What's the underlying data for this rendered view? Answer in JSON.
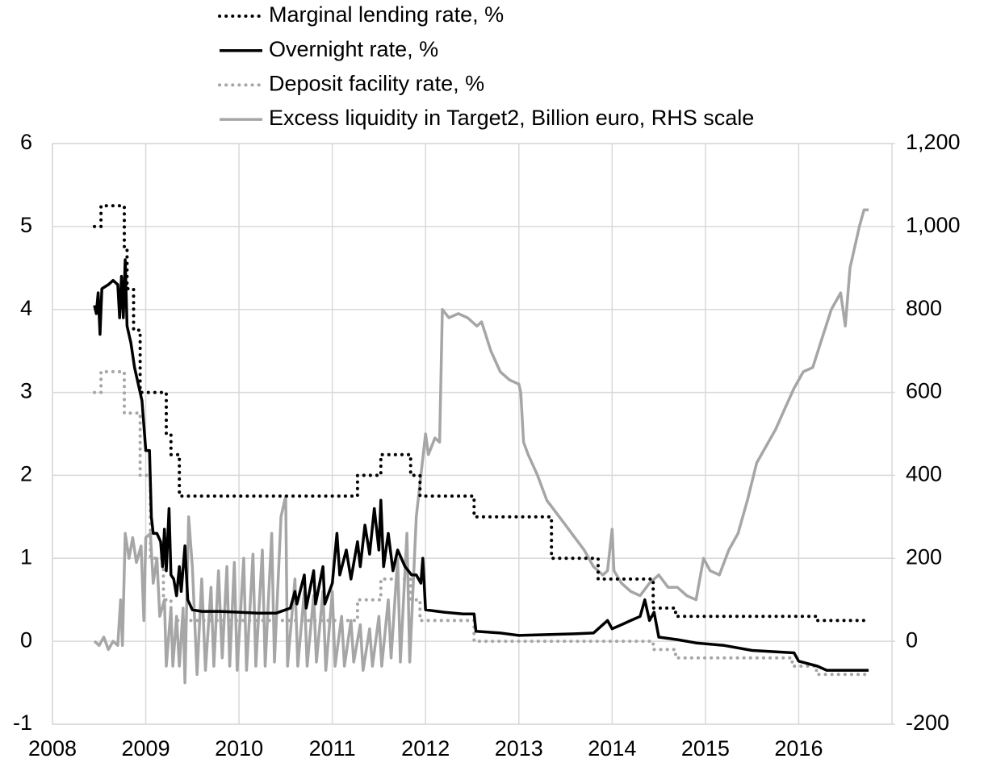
{
  "chart_data": {
    "type": "line",
    "xlim": [
      2008,
      2017
    ],
    "xticks": [
      2008,
      2009,
      2010,
      2011,
      2012,
      2013,
      2014,
      2015,
      2016
    ],
    "ylim": [
      -1,
      6
    ],
    "yticks": [
      -1,
      0,
      1,
      2,
      3,
      4,
      5,
      6
    ],
    "y2lim": [
      -200,
      1200
    ],
    "y2ticks": [
      -200,
      0,
      200,
      400,
      600,
      800,
      {
        "value": 1000,
        "label": "1,000"
      },
      {
        "value": 1200,
        "label": "1,200"
      }
    ],
    "grid": true,
    "series": [
      {
        "name": "Marginal lending rate, %",
        "color": "#000000",
        "dash": "dotted",
        "x": [
          2008.45,
          2008.52,
          2008.52,
          2008.77,
          2008.77,
          2008.8,
          2008.8,
          2008.87,
          2008.87,
          2008.94,
          2008.94,
          2009.22,
          2009.22,
          2009.27,
          2009.27,
          2009.36,
          2009.36,
          2011.27,
          2011.27,
          2011.52,
          2011.52,
          2011.84,
          2011.84,
          2011.94,
          2011.94,
          2012.52,
          2012.52,
          2013.35,
          2013.35,
          2013.85,
          2013.85,
          2014.44,
          2014.44,
          2014.68,
          2014.68,
          2016.19,
          2016.19,
          2016.75
        ],
        "values": [
          5,
          5,
          5.25,
          5.25,
          4.75,
          4.75,
          4.25,
          4.25,
          3.75,
          3.75,
          3,
          3,
          2.5,
          2.5,
          2.25,
          2.25,
          1.75,
          1.75,
          2,
          2,
          2.25,
          2.25,
          2,
          2,
          1.75,
          1.75,
          1.5,
          1.5,
          1,
          1,
          0.75,
          0.75,
          0.4,
          0.4,
          0.3,
          0.3,
          0.25,
          0.25
        ]
      },
      {
        "name": "Overnight rate, %",
        "color": "#000000",
        "dash": "solid",
        "x": [
          2008.45,
          2008.47,
          2008.49,
          2008.51,
          2008.53,
          2008.6,
          2008.65,
          2008.7,
          2008.72,
          2008.74,
          2008.76,
          2008.78,
          2008.8,
          2008.84,
          2008.88,
          2008.92,
          2008.96,
          2009.0,
          2009.04,
          2009.06,
          2009.08,
          2009.12,
          2009.16,
          2009.18,
          2009.2,
          2009.22,
          2009.25,
          2009.27,
          2009.3,
          2009.33,
          2009.36,
          2009.38,
          2009.42,
          2009.45,
          2009.5,
          2009.6,
          2009.8,
          2010.0,
          2010.2,
          2010.4,
          2010.55,
          2010.6,
          2010.62,
          2010.7,
          2010.72,
          2010.8,
          2010.82,
          2010.9,
          2010.92,
          2011.0,
          2011.05,
          2011.08,
          2011.15,
          2011.2,
          2011.27,
          2011.3,
          2011.35,
          2011.4,
          2011.45,
          2011.5,
          2011.52,
          2011.55,
          2011.6,
          2011.65,
          2011.7,
          2011.78,
          2011.85,
          2011.9,
          2011.95,
          2011.97,
          2012.0,
          2012.2,
          2012.4,
          2012.52,
          2012.54,
          2012.8,
          2013.0,
          2013.3,
          2013.6,
          2013.8,
          2013.95,
          2014.0,
          2014.1,
          2014.2,
          2014.3,
          2014.35,
          2014.4,
          2014.45,
          2014.5,
          2014.7,
          2014.9,
          2015.2,
          2015.5,
          2015.8,
          2015.95,
          2016.0,
          2016.2,
          2016.3,
          2016.75
        ],
        "values": [
          4.05,
          3.95,
          4.2,
          3.7,
          4.25,
          4.3,
          4.35,
          4.3,
          3.9,
          4.4,
          3.9,
          4.6,
          3.8,
          3.6,
          3.3,
          3.1,
          2.9,
          2.3,
          2.3,
          1.5,
          1.3,
          1.3,
          1.2,
          0.9,
          1.35,
          0.85,
          1.6,
          0.8,
          0.75,
          0.55,
          0.9,
          0.6,
          1.15,
          0.5,
          0.38,
          0.36,
          0.36,
          0.35,
          0.34,
          0.34,
          0.4,
          0.6,
          0.45,
          0.8,
          0.4,
          0.85,
          0.45,
          0.9,
          0.45,
          0.7,
          1.3,
          0.8,
          1.1,
          0.75,
          1.2,
          0.9,
          1.4,
          1.05,
          1.6,
          1.1,
          1.7,
          0.9,
          1.3,
          0.85,
          1.1,
          0.9,
          0.8,
          0.8,
          0.7,
          1,
          0.38,
          0.35,
          0.33,
          0.33,
          0.12,
          0.1,
          0.07,
          0.08,
          0.09,
          0.1,
          0.25,
          0.15,
          0.2,
          0.25,
          0.3,
          0.5,
          0.25,
          0.35,
          0.05,
          0.02,
          -0.02,
          -0.05,
          -0.11,
          -0.13,
          -0.14,
          -0.24,
          -0.3,
          -0.35,
          -0.35
        ]
      },
      {
        "name": "Deposit facility rate, %",
        "color": "#a6a6a6",
        "dash": "dotted",
        "x": [
          2008.45,
          2008.52,
          2008.52,
          2008.77,
          2008.77,
          2008.94,
          2008.94,
          2009.05,
          2009.05,
          2009.19,
          2009.19,
          2009.27,
          2009.27,
          2011.27,
          2011.27,
          2011.52,
          2011.52,
          2011.84,
          2011.84,
          2011.94,
          2011.94,
          2012.52,
          2012.52,
          2014.44,
          2014.44,
          2014.68,
          2014.68,
          2015.93,
          2015.93,
          2016.19,
          2016.19,
          2016.75
        ],
        "values": [
          3,
          3,
          3.25,
          3.25,
          2.75,
          2.75,
          2,
          2,
          1,
          1,
          0.5,
          0.5,
          0.25,
          0.25,
          0.5,
          0.5,
          0.75,
          0.75,
          0.5,
          0.5,
          0.25,
          0.25,
          0,
          0,
          -0.1,
          -0.1,
          -0.2,
          -0.2,
          -0.3,
          -0.3,
          -0.4,
          -0.4
        ]
      },
      {
        "name": "Excess liquidity in Target2, Billion euro, RHS scale",
        "color": "#a6a6a6",
        "dash": "solid",
        "axis": "y2",
        "x": [
          2008.45,
          2008.5,
          2008.55,
          2008.6,
          2008.65,
          2008.7,
          2008.73,
          2008.75,
          2008.78,
          2008.82,
          2008.86,
          2008.9,
          2008.95,
          2008.98,
          2009.0,
          2009.05,
          2009.08,
          2009.12,
          2009.15,
          2009.2,
          2009.22,
          2009.27,
          2009.29,
          2009.33,
          2009.36,
          2009.4,
          2009.42,
          2009.46,
          2009.5,
          2009.55,
          2009.6,
          2009.64,
          2009.7,
          2009.73,
          2009.78,
          2009.82,
          2009.87,
          2009.9,
          2009.95,
          2009.98,
          2010.05,
          2010.08,
          2010.15,
          2010.18,
          2010.25,
          2010.28,
          2010.35,
          2010.38,
          2010.45,
          2010.5,
          2010.52,
          2010.6,
          2010.63,
          2010.7,
          2010.73,
          2010.8,
          2010.83,
          2010.9,
          2010.93,
          2011.0,
          2011.03,
          2011.1,
          2011.13,
          2011.2,
          2011.23,
          2011.3,
          2011.33,
          2011.4,
          2011.43,
          2011.5,
          2011.53,
          2011.6,
          2011.63,
          2011.7,
          2011.73,
          2011.8,
          2011.83,
          2011.9,
          2011.95,
          2012.0,
          2012.03,
          2012.1,
          2012.15,
          2012.18,
          2012.25,
          2012.35,
          2012.45,
          2012.55,
          2012.6,
          2012.7,
          2012.8,
          2012.9,
          2013.0,
          2013.02,
          2013.05,
          2013.1,
          2013.2,
          2013.3,
          2013.4,
          2013.5,
          2013.6,
          2013.7,
          2013.8,
          2013.9,
          2013.95,
          2014.0,
          2014.02,
          2014.1,
          2014.2,
          2014.3,
          2014.4,
          2014.5,
          2014.6,
          2014.7,
          2014.8,
          2014.9,
          2014.98,
          2015.05,
          2015.15,
          2015.25,
          2015.35,
          2015.45,
          2015.55,
          2015.65,
          2015.75,
          2015.85,
          2015.95,
          2016.05,
          2016.15,
          2016.25,
          2016.35,
          2016.45,
          2016.5,
          2016.55,
          2016.6,
          2016.65,
          2016.7,
          2016.75
        ],
        "values": [
          0,
          -10,
          10,
          -20,
          0,
          -10,
          100,
          -10,
          260,
          200,
          250,
          190,
          230,
          50,
          250,
          260,
          140,
          200,
          60,
          100,
          -60,
          80,
          -60,
          60,
          -60,
          80,
          -100,
          300,
          180,
          -80,
          150,
          -70,
          130,
          -60,
          170,
          -40,
          180,
          -60,
          190,
          -70,
          200,
          -70,
          210,
          -60,
          220,
          -60,
          260,
          -50,
          300,
          350,
          -60,
          150,
          -60,
          120,
          -60,
          110,
          -50,
          120,
          -70,
          120,
          -60,
          60,
          -60,
          50,
          -50,
          40,
          -70,
          30,
          -60,
          60,
          -60,
          100,
          -40,
          200,
          -50,
          260,
          -50,
          300,
          400,
          500,
          450,
          490,
          480,
          800,
          780,
          790,
          780,
          760,
          770,
          700,
          650,
          630,
          620,
          600,
          480,
          450,
          400,
          340,
          310,
          280,
          250,
          220,
          180,
          160,
          170,
          270,
          170,
          140,
          120,
          110,
          140,
          160,
          130,
          130,
          110,
          100,
          200,
          170,
          160,
          220,
          260,
          340,
          430,
          470,
          510,
          560,
          610,
          650,
          660,
          730,
          800,
          840,
          760,
          900,
          950,
          1000,
          1040,
          1040
        ]
      }
    ]
  }
}
